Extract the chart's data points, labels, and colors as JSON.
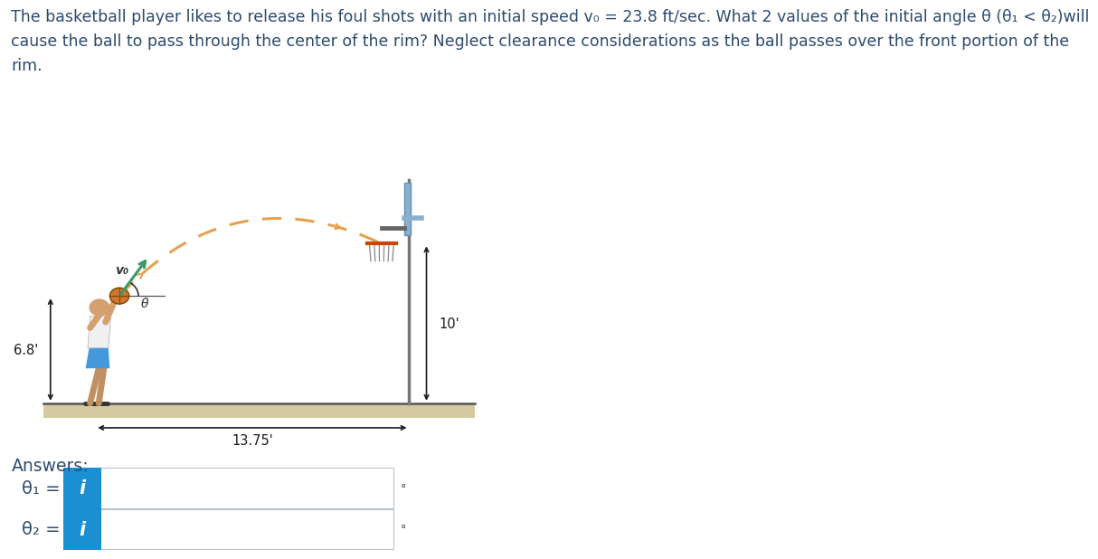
{
  "title_line1": "The basketball player likes to release his foul shots with an initial speed v₀ = 23.8 ft/sec. What 2 values of the initial angle θ (θ₁ < θ₂)will",
  "title_line2": "cause the ball to pass through the center of the rim? Neglect clearance considerations as the ball passes over the front portion of the",
  "title_line3": "rim.",
  "title_color": "#2d4a6e",
  "title_fontsize": 12.5,
  "answers_label": "Answers:",
  "theta1_label": "θ₁ =",
  "theta2_label": "θ₂ =",
  "dim_68": "6.8'",
  "dim_10": "10'",
  "dim_1375": "13.75'",
  "v0_label": "v₀",
  "theta_label": "θ",
  "bg_color": "#ffffff",
  "arc_color": "#e8a050",
  "arrow_color": "#3a9a6a",
  "dim_color": "#1a1a1a",
  "box_border_color": "#b8c0c8",
  "box_fill_color": "#f5f5f5",
  "icon_bg_color": "#1a8fd1",
  "icon_text_color": "#ffffff",
  "ground_fill": "#d4c9a0",
  "ground_line": "#555555",
  "player_skin": "#d4a070",
  "player_shirt": "#f0f0f0",
  "player_shorts": "#4499dd",
  "player_shoes": "#333333",
  "ball_color": "#cc7730",
  "ball_line": "#884400",
  "backboard_color": "#8ab0cc",
  "rim_color": "#cc4400",
  "pole_color": "#777777",
  "net_color": "#888888"
}
